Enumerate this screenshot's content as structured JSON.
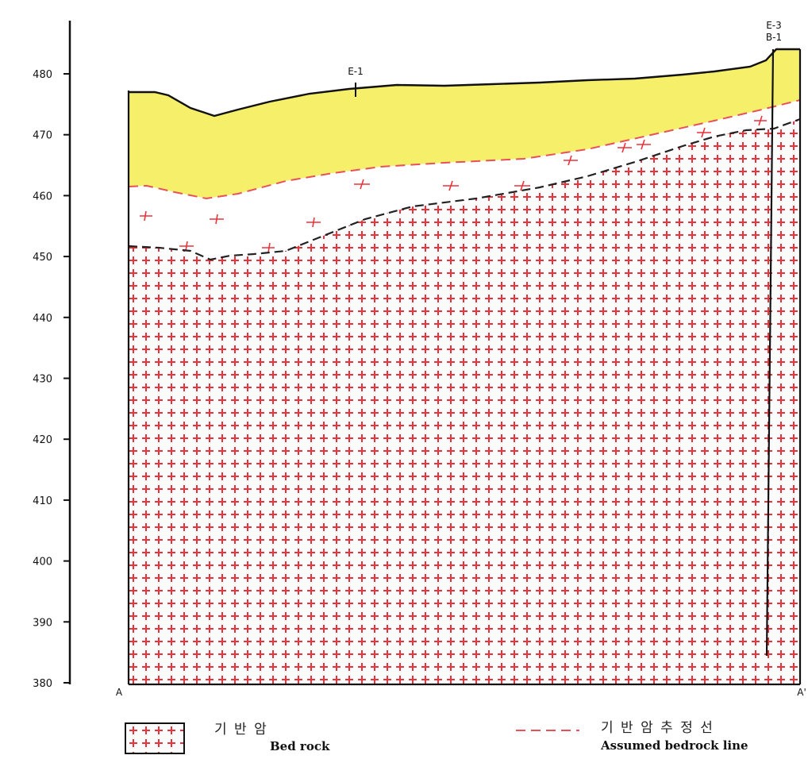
{
  "diagram": {
    "y_axis": {
      "min": 380,
      "max": 480,
      "ticks": [
        480,
        470,
        460,
        450,
        440,
        430,
        420,
        410,
        400,
        390,
        380
      ]
    },
    "section_ends": {
      "left": "A",
      "right": "A'"
    },
    "wells": [
      {
        "lines": [
          "E-1"
        ]
      },
      {
        "lines": [
          "E-3",
          "B-1"
        ]
      }
    ],
    "colors": {
      "overburden": "#f6ef6a",
      "bedrock_cross": "#e8333a",
      "assumed_line": "#e8505a",
      "outline": "#111111"
    }
  },
  "legend": {
    "bedrock": {
      "korean": "기    반      암",
      "english": "Bed rock"
    },
    "assumed_line": {
      "korean": "기 반 암 추 정 선",
      "english": "Assumed bedrock line"
    }
  }
}
